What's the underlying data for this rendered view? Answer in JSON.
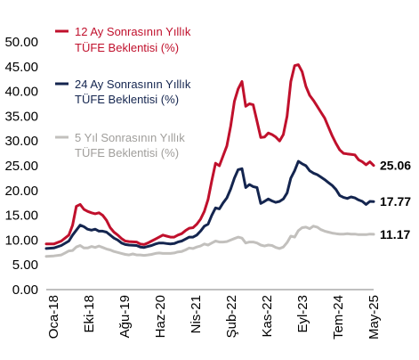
{
  "chart_data": {
    "type": "line",
    "title": "",
    "xlabel": "",
    "ylabel": "",
    "ylim": [
      0,
      50
    ],
    "y_ticks": [
      "0.00",
      "5.00",
      "10.00",
      "15.00",
      "20.00",
      "25.00",
      "30.00",
      "35.00",
      "40.00",
      "45.00",
      "50.00"
    ],
    "x_tick_labels": [
      "Oca-18",
      "Eki-18",
      "Ağu-19",
      "Haz-20",
      "Nis-21",
      "Şub-22",
      "Kas-22",
      "Eyl-23",
      "Tem-24",
      "May-25"
    ],
    "grid": false,
    "legend_position": "top-left",
    "series": [
      {
        "name_lines": [
          "12 Ay Sonrasının Yıllık",
          "TÜFE Beklentisi (%)"
        ],
        "color": "#c0102c",
        "end_label": "25.06",
        "points": [
          [
            0,
            9.2
          ],
          [
            2,
            9.2
          ],
          [
            4,
            9.8
          ],
          [
            6,
            11.0
          ],
          [
            7,
            13.0
          ],
          [
            8,
            16.8
          ],
          [
            9,
            17.2
          ],
          [
            10,
            16.2
          ],
          [
            11,
            15.8
          ],
          [
            12,
            15.5
          ],
          [
            13,
            15.3
          ],
          [
            14,
            15.5
          ],
          [
            15,
            15.0
          ],
          [
            16,
            14.0
          ],
          [
            17,
            12.5
          ],
          [
            18,
            11.6
          ],
          [
            19,
            11.0
          ],
          [
            20,
            10.3
          ],
          [
            21,
            9.8
          ],
          [
            22,
            9.7
          ],
          [
            24,
            9.6
          ],
          [
            25,
            9.2
          ],
          [
            26,
            9.1
          ],
          [
            27,
            9.4
          ],
          [
            28,
            9.8
          ],
          [
            29,
            10.2
          ],
          [
            30,
            10.6
          ],
          [
            31,
            11.0
          ],
          [
            32,
            10.8
          ],
          [
            33,
            10.6
          ],
          [
            34,
            10.6
          ],
          [
            35,
            11.0
          ],
          [
            36,
            11.3
          ],
          [
            37,
            11.9
          ],
          [
            38,
            12.4
          ],
          [
            39,
            12.5
          ],
          [
            40,
            13.2
          ],
          [
            41,
            14.2
          ],
          [
            42,
            15.8
          ],
          [
            43,
            18.2
          ],
          [
            44,
            22.0
          ],
          [
            45,
            25.5
          ],
          [
            46,
            25.0
          ],
          [
            47,
            27.0
          ],
          [
            48,
            29.0
          ],
          [
            49,
            33.0
          ],
          [
            50,
            38.0
          ],
          [
            51,
            40.5
          ],
          [
            52,
            42.0
          ],
          [
            53,
            37.0
          ],
          [
            54,
            37.5
          ],
          [
            55,
            37.3
          ],
          [
            56,
            34.0
          ],
          [
            57,
            30.7
          ],
          [
            58,
            30.8
          ],
          [
            59,
            31.6
          ],
          [
            60,
            31.3
          ],
          [
            61,
            30.8
          ],
          [
            62,
            30.0
          ],
          [
            63,
            31.3
          ],
          [
            64,
            35.0
          ],
          [
            65,
            42.0
          ],
          [
            66,
            45.2
          ],
          [
            67,
            45.4
          ],
          [
            68,
            44.0
          ],
          [
            69,
            41.0
          ],
          [
            70,
            39.2
          ],
          [
            71,
            38.2
          ],
          [
            72,
            37.0
          ],
          [
            73,
            35.8
          ],
          [
            74,
            34.6
          ],
          [
            75,
            32.8
          ],
          [
            76,
            31.0
          ],
          [
            77,
            29.5
          ],
          [
            78,
            28.2
          ],
          [
            79,
            27.5
          ],
          [
            80,
            27.4
          ],
          [
            81,
            27.3
          ],
          [
            82,
            27.2
          ],
          [
            83,
            26.2
          ],
          [
            84,
            25.8
          ],
          [
            85,
            25.2
          ],
          [
            86,
            25.8
          ],
          [
            87,
            25.06
          ]
        ]
      },
      {
        "name_lines": [
          "24 Ay Sonrasının Yıllık",
          "TÜFE Beklentisi (%)"
        ],
        "color": "#14254f",
        "end_label": "17.77",
        "points": [
          [
            0,
            8.3
          ],
          [
            2,
            8.4
          ],
          [
            4,
            8.9
          ],
          [
            6,
            9.8
          ],
          [
            7,
            11.0
          ],
          [
            8,
            12.0
          ],
          [
            9,
            13.0
          ],
          [
            10,
            12.7
          ],
          [
            11,
            12.2
          ],
          [
            12,
            12.0
          ],
          [
            13,
            12.2
          ],
          [
            14,
            11.8
          ],
          [
            15,
            11.8
          ],
          [
            16,
            11.6
          ],
          [
            17,
            11.0
          ],
          [
            18,
            10.4
          ],
          [
            19,
            10.0
          ],
          [
            20,
            9.4
          ],
          [
            21,
            9.1
          ],
          [
            22,
            9.0
          ],
          [
            24,
            8.9
          ],
          [
            25,
            8.6
          ],
          [
            26,
            8.5
          ],
          [
            27,
            8.7
          ],
          [
            28,
            8.9
          ],
          [
            29,
            9.2
          ],
          [
            30,
            9.4
          ],
          [
            31,
            9.4
          ],
          [
            32,
            9.3
          ],
          [
            33,
            9.2
          ],
          [
            34,
            9.3
          ],
          [
            35,
            9.6
          ],
          [
            36,
            9.8
          ],
          [
            37,
            10.2
          ],
          [
            38,
            10.6
          ],
          [
            39,
            10.6
          ],
          [
            40,
            11.0
          ],
          [
            41,
            11.8
          ],
          [
            42,
            12.8
          ],
          [
            43,
            13.2
          ],
          [
            44,
            15.0
          ],
          [
            45,
            16.5
          ],
          [
            46,
            16.3
          ],
          [
            47,
            17.5
          ],
          [
            48,
            18.5
          ],
          [
            49,
            20.3
          ],
          [
            50,
            22.5
          ],
          [
            51,
            24.2
          ],
          [
            52,
            24.4
          ],
          [
            53,
            20.6
          ],
          [
            54,
            21.2
          ],
          [
            55,
            20.8
          ],
          [
            56,
            20.6
          ],
          [
            57,
            17.4
          ],
          [
            58,
            17.8
          ],
          [
            59,
            18.3
          ],
          [
            60,
            17.9
          ],
          [
            61,
            17.6
          ],
          [
            62,
            17.8
          ],
          [
            63,
            18.3
          ],
          [
            64,
            19.5
          ],
          [
            65,
            22.5
          ],
          [
            66,
            24.0
          ],
          [
            67,
            25.9
          ],
          [
            68,
            25.4
          ],
          [
            69,
            25.0
          ],
          [
            70,
            24.0
          ],
          [
            71,
            23.5
          ],
          [
            72,
            23.2
          ],
          [
            73,
            22.7
          ],
          [
            74,
            22.2
          ],
          [
            75,
            21.6
          ],
          [
            76,
            21.0
          ],
          [
            77,
            20.2
          ],
          [
            78,
            19.0
          ],
          [
            79,
            18.6
          ],
          [
            80,
            18.4
          ],
          [
            81,
            18.7
          ],
          [
            82,
            18.5
          ],
          [
            83,
            18.1
          ],
          [
            84,
            17.8
          ],
          [
            85,
            17.2
          ],
          [
            86,
            17.8
          ],
          [
            87,
            17.77
          ]
        ]
      },
      {
        "name_lines": [
          "5 Yıl Sonrasının Yıllık",
          "TÜFE Beklentisi (%)"
        ],
        "color": "#c2c0bd",
        "end_label": "11.17",
        "points": [
          [
            0,
            6.7
          ],
          [
            2,
            6.8
          ],
          [
            4,
            7.0
          ],
          [
            5,
            7.4
          ],
          [
            6,
            7.8
          ],
          [
            7,
            7.9
          ],
          [
            8,
            8.6
          ],
          [
            9,
            8.9
          ],
          [
            10,
            8.4
          ],
          [
            11,
            8.4
          ],
          [
            12,
            8.7
          ],
          [
            13,
            8.5
          ],
          [
            14,
            8.8
          ],
          [
            15,
            8.5
          ],
          [
            16,
            8.2
          ],
          [
            17,
            8.0
          ],
          [
            18,
            7.7
          ],
          [
            19,
            7.5
          ],
          [
            20,
            7.3
          ],
          [
            21,
            7.1
          ],
          [
            22,
            7.0
          ],
          [
            23,
            7.2
          ],
          [
            24,
            7.0
          ],
          [
            25,
            7.0
          ],
          [
            26,
            6.9
          ],
          [
            27,
            7.0
          ],
          [
            28,
            7.1
          ],
          [
            29,
            7.3
          ],
          [
            30,
            7.4
          ],
          [
            31,
            7.3
          ],
          [
            32,
            7.3
          ],
          [
            33,
            7.3
          ],
          [
            34,
            7.4
          ],
          [
            35,
            7.6
          ],
          [
            36,
            7.7
          ],
          [
            37,
            8.0
          ],
          [
            38,
            8.4
          ],
          [
            39,
            8.3
          ],
          [
            40,
            8.6
          ],
          [
            41,
            8.8
          ],
          [
            42,
            9.2
          ],
          [
            43,
            9.0
          ],
          [
            44,
            9.4
          ],
          [
            45,
            9.8
          ],
          [
            46,
            9.6
          ],
          [
            47,
            9.6
          ],
          [
            48,
            9.7
          ],
          [
            49,
            10.0
          ],
          [
            50,
            10.3
          ],
          [
            51,
            10.6
          ],
          [
            52,
            10.4
          ],
          [
            53,
            9.4
          ],
          [
            54,
            9.6
          ],
          [
            55,
            9.6
          ],
          [
            56,
            9.4
          ],
          [
            57,
            9.0
          ],
          [
            58,
            8.8
          ],
          [
            59,
            9.0
          ],
          [
            60,
            8.9
          ],
          [
            61,
            8.5
          ],
          [
            62,
            8.3
          ],
          [
            63,
            8.6
          ],
          [
            64,
            9.5
          ],
          [
            65,
            10.8
          ],
          [
            66,
            10.6
          ],
          [
            67,
            11.9
          ],
          [
            68,
            12.5
          ],
          [
            69,
            12.6
          ],
          [
            70,
            12.3
          ],
          [
            71,
            12.8
          ],
          [
            72,
            12.6
          ],
          [
            73,
            12.1
          ],
          [
            74,
            11.8
          ],
          [
            75,
            11.6
          ],
          [
            76,
            11.4
          ],
          [
            77,
            11.3
          ],
          [
            78,
            11.2
          ],
          [
            79,
            11.2
          ],
          [
            80,
            11.3
          ],
          [
            81,
            11.2
          ],
          [
            82,
            11.2
          ],
          [
            83,
            11.1
          ],
          [
            84,
            11.1
          ],
          [
            85,
            11.1
          ],
          [
            86,
            11.2
          ],
          [
            87,
            11.17
          ]
        ]
      }
    ]
  }
}
